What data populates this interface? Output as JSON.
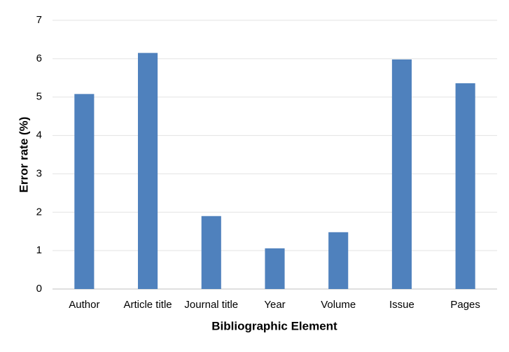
{
  "chart_data": {
    "type": "bar",
    "x_label": "Bibliographic Element",
    "y_label": "Error rate (%)",
    "categories": [
      "Author",
      "Article title",
      "Journal title",
      "Year",
      "Volume",
      "Issue",
      "Pages"
    ],
    "values": [
      5.08,
      6.15,
      1.9,
      1.06,
      1.48,
      5.98,
      5.36
    ],
    "color": "#4f81bd",
    "ylim": [
      0,
      7
    ],
    "yticks": [
      0,
      1,
      2,
      3,
      4,
      5,
      6,
      7
    ],
    "grid": true
  }
}
